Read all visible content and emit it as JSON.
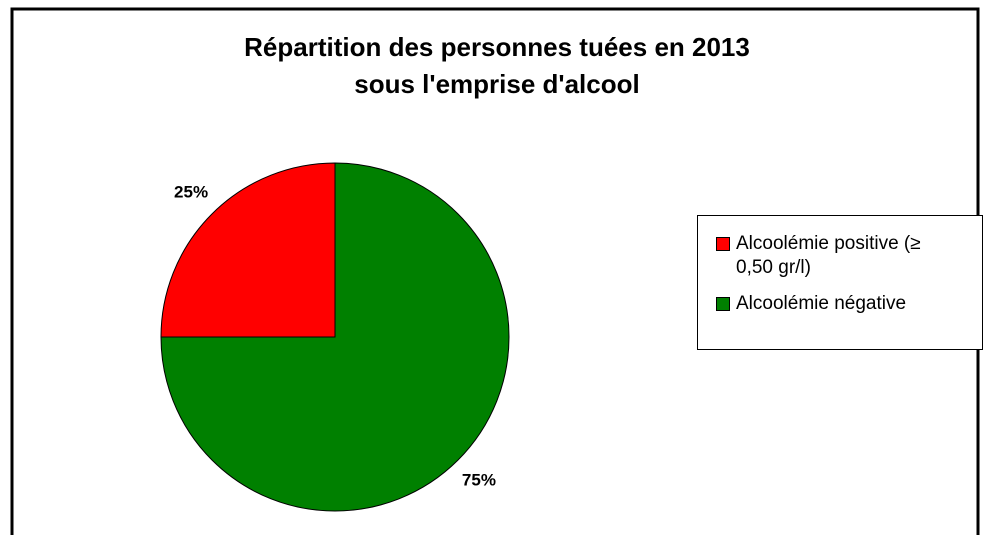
{
  "chart_data": {
    "type": "pie",
    "title": [
      "Répartition des personnes tuées en 2013",
      "sous l'emprise d'alcool"
    ],
    "categories": [
      "Alcoolémie positive (≥ 0,50 gr/l)",
      "Alcoolémie négative"
    ],
    "values": [
      25,
      75
    ],
    "value_labels": [
      "25%",
      "75%"
    ],
    "colors": [
      "#ff0000",
      "#008000"
    ],
    "legend": "right"
  }
}
